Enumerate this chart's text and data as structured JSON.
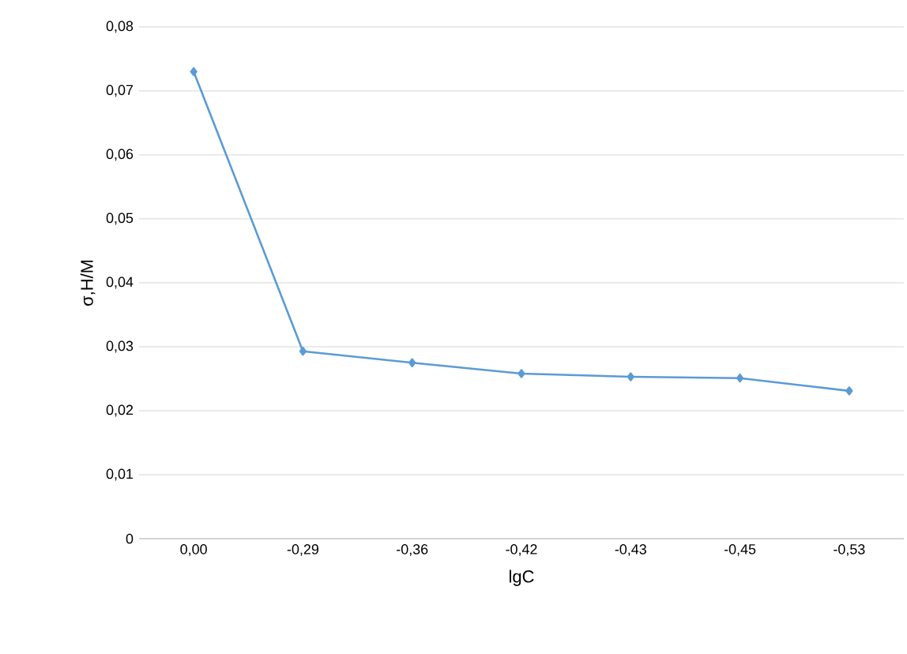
{
  "chart_data": {
    "type": "line",
    "xlabel": "lgC",
    "ylabel": "σ,Н/М",
    "categories": [
      "0,00",
      "-0,29",
      "-0,36",
      "-0,42",
      "-0,43",
      "-0,45",
      "-0,53"
    ],
    "series": [
      {
        "color": "#5b9bd5",
        "values": [
          0.073,
          0.0293,
          0.0275,
          0.0258,
          0.0253,
          0.0251,
          0.0231
        ]
      }
    ],
    "ylim": [
      0,
      0.08
    ],
    "yticks": [
      0,
      {
        "value": 0.01,
        "label": "0,01"
      },
      {
        "value": 0.02,
        "label": "0,02"
      },
      {
        "value": 0.03,
        "label": "0,03"
      },
      {
        "value": 0.04,
        "label": "0,04"
      },
      {
        "value": 0.05,
        "label": "0,05"
      },
      {
        "value": 0.06,
        "label": "0,06"
      },
      {
        "value": 0.07,
        "label": "0,07"
      },
      {
        "value": 0.08,
        "label": "0,08"
      }
    ],
    "grid": "y",
    "marker": "diamond",
    "line_style": "solid"
  }
}
